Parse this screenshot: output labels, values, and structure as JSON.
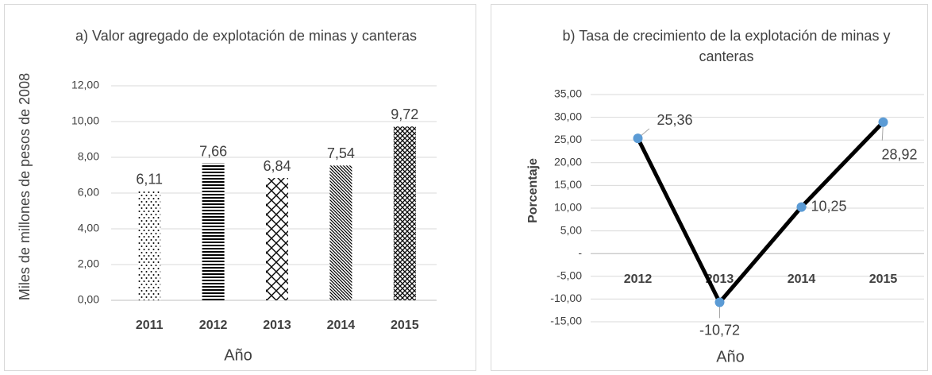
{
  "chart_data": [
    {
      "type": "bar",
      "title": "a) Valor agregado de explotación de minas y canteras",
      "ylabel": "Miles de millones de pesos de 2008",
      "xlabel": "Año",
      "categories": [
        "2011",
        "2012",
        "2013",
        "2014",
        "2015"
      ],
      "values": [
        6.11,
        7.66,
        6.84,
        7.54,
        9.72
      ],
      "value_labels": [
        "6,11",
        "7,66",
        "6,84",
        "7,54",
        "9,72"
      ],
      "patterns": [
        "dots",
        "hlines",
        "diamonds",
        "diagonal",
        "crosshatch"
      ],
      "color": "#000000",
      "ylim": [
        0,
        12
      ],
      "yticks": [
        {
          "value": 0,
          "label": "0,00"
        },
        {
          "value": 2,
          "label": "2,00"
        },
        {
          "value": 4,
          "label": "4,00"
        },
        {
          "value": 6,
          "label": "6,00"
        },
        {
          "value": 8,
          "label": "8,00"
        },
        {
          "value": 10,
          "label": "10,00"
        },
        {
          "value": 12,
          "label": "12,00"
        }
      ],
      "grid": true
    },
    {
      "type": "line",
      "title": "b) Tasa de crecimiento de la explotación de minas y canteras",
      "ylabel": "Porcentaje",
      "xlabel": "Año",
      "categories": [
        "2012",
        "2013",
        "2014",
        "2015"
      ],
      "values": [
        25.36,
        -10.72,
        10.25,
        28.92
      ],
      "value_labels": [
        "25,36",
        "-10,72",
        "10,25",
        "28,92"
      ],
      "color": "#000000",
      "marker_color": "#5b9bd5",
      "ylim": [
        -15,
        35
      ],
      "yticks": [
        {
          "value": -15,
          "label": "-15,00"
        },
        {
          "value": -10,
          "label": "-10,00"
        },
        {
          "value": -5,
          "label": "-5,00"
        },
        {
          "value": 0,
          "label": "-"
        },
        {
          "value": 5,
          "label": "5,00"
        },
        {
          "value": 10,
          "label": "10,00"
        },
        {
          "value": 15,
          "label": "15,00"
        },
        {
          "value": 20,
          "label": "20,00"
        },
        {
          "value": 25,
          "label": "25,00"
        },
        {
          "value": 30,
          "label": "30,00"
        },
        {
          "value": 35,
          "label": "35,00"
        }
      ],
      "grid": true
    }
  ]
}
